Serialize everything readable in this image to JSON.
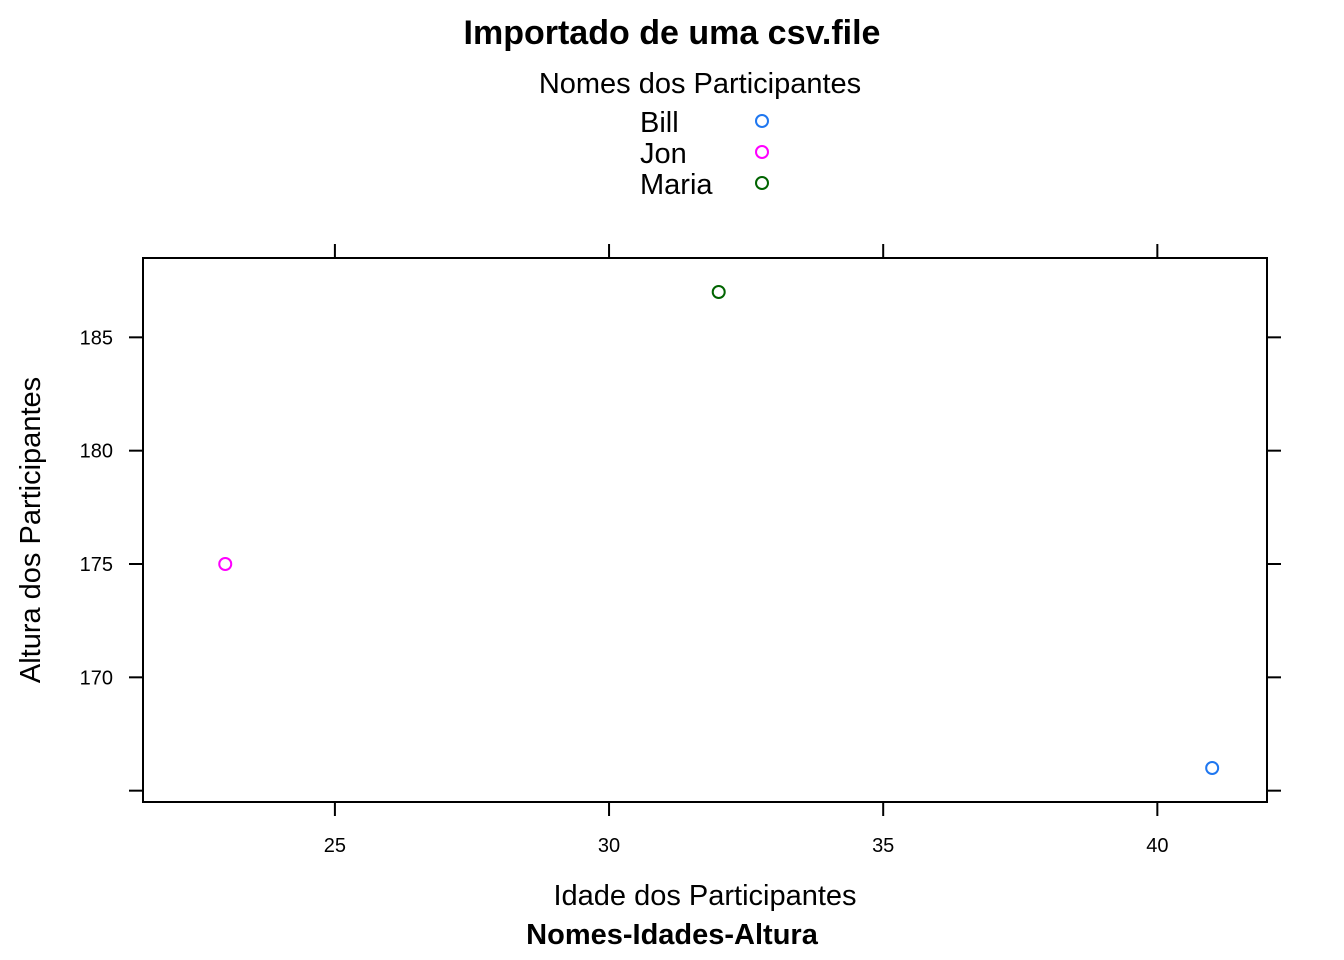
{
  "chart_data": {
    "type": "scatter",
    "title": "Importado de uma csv.file",
    "xlabel": "Idade dos Participantes",
    "sublabel": "Nomes-Idades-Altura",
    "ylabel": "Altura dos Participantes",
    "legend": {
      "title": "Nomes dos Participantes",
      "placement": "top",
      "entries": [
        {
          "name": "Bill",
          "color": "#1f77f0"
        },
        {
          "name": "Jon",
          "color": "#ff00ff"
        },
        {
          "name": "Maria",
          "color": "#006400"
        }
      ]
    },
    "xlim": [
      21.5,
      42.0
    ],
    "ylim": [
      164.5,
      188.5
    ],
    "xticks": [
      25,
      30,
      35,
      40
    ],
    "yticks": [
      165,
      170,
      175,
      180,
      185
    ],
    "ytick_labels": [
      "",
      "170",
      "175",
      "180",
      "185"
    ],
    "series": [
      {
        "name": "Bill",
        "color": "#1f77f0",
        "x": [
          41
        ],
        "y": [
          166
        ]
      },
      {
        "name": "Jon",
        "color": "#ff00ff",
        "x": [
          23
        ],
        "y": [
          175
        ]
      },
      {
        "name": "Maria",
        "color": "#006400",
        "x": [
          32
        ],
        "y": [
          187
        ]
      }
    ],
    "grid": false
  }
}
